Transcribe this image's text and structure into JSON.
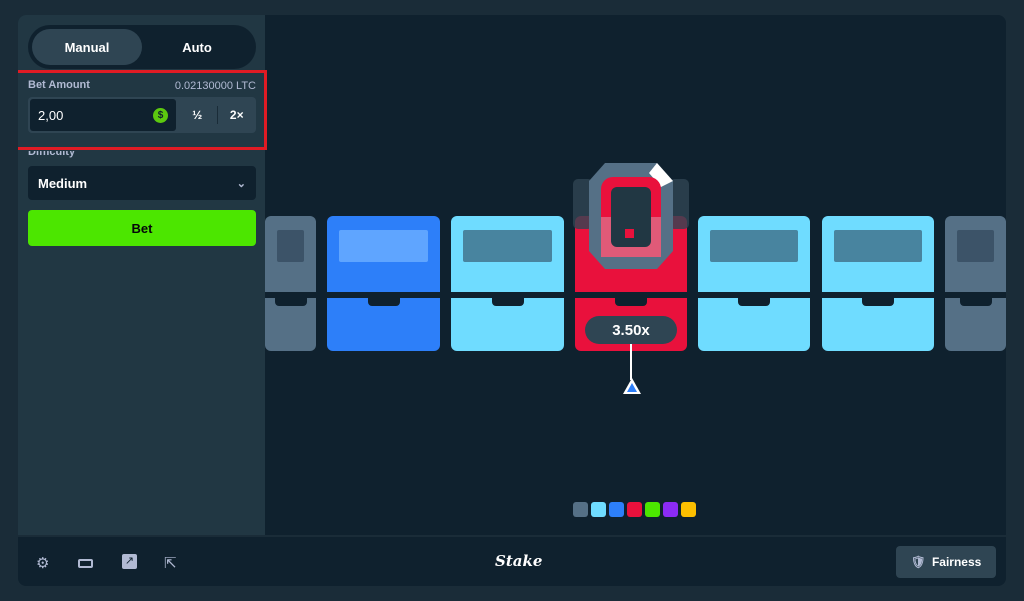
{
  "mode_tabs": [
    {
      "label": "Manual",
      "active": true
    },
    {
      "label": "Auto",
      "active": false
    }
  ],
  "bet": {
    "label": "Bet Amount",
    "balance": "0.02130000 LTC",
    "value": "2,00",
    "half": "½",
    "double": "2×"
  },
  "difficulty": {
    "label": "Difficulty",
    "value": "Medium"
  },
  "bet_button": "Bet",
  "game": {
    "multiplier": "3.50x",
    "chests": [
      {
        "color": "#557086"
      },
      {
        "color": "#2d7ff9"
      },
      {
        "color": "#6fdcff"
      },
      {
        "color": "#e9113c",
        "selected": true
      },
      {
        "color": "#6fdcff"
      },
      {
        "color": "#6fdcff"
      },
      {
        "color": "#557086"
      }
    ],
    "legend_colors": [
      "#557086",
      "#6fdcff",
      "#2d7ff9",
      "#e9113c",
      "#4ce600",
      "#8b2bf5",
      "#fcbf00"
    ]
  },
  "footer": {
    "icons": [
      "settings-icon",
      "theatre-mode-icon",
      "stats-icon",
      "popout-icon"
    ],
    "logo": "Stake",
    "fairness": "Fairness"
  }
}
